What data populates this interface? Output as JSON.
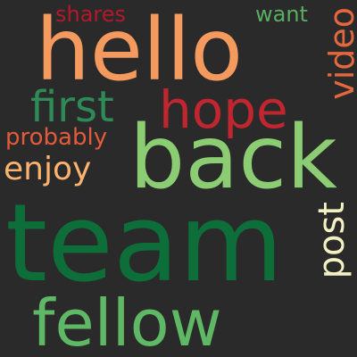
{
  "words": [
    {
      "text": "hello",
      "color": "#f59a5e"
    },
    {
      "text": "back",
      "color": "#8ccd74"
    },
    {
      "text": "team",
      "color": "#0d6e3a"
    },
    {
      "text": "fellow",
      "color": "#5fb865"
    },
    {
      "text": "hope",
      "color": "#c0262f"
    },
    {
      "text": "first",
      "color": "#2e8b57"
    },
    {
      "text": "enjoy",
      "color": "#fbb36d"
    },
    {
      "text": "probably",
      "color": "#e45a3c"
    },
    {
      "text": "shares",
      "color": "#b3182b"
    },
    {
      "text": "want",
      "color": "#5aae61"
    },
    {
      "text": "video",
      "color": "#e4683f"
    },
    {
      "text": "post",
      "color": "#f3f0c2"
    }
  ]
}
